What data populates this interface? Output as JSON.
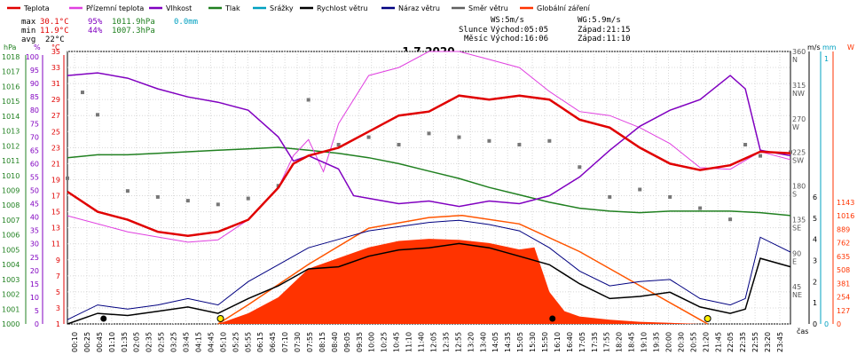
{
  "chart_data": {
    "type": "line",
    "title": "1.7.2020",
    "legend": [
      {
        "name": "Teplota",
        "color": "#e00000"
      },
      {
        "name": "Přízemní teplota",
        "color": "#e040e0"
      },
      {
        "name": "Vlhkost",
        "color": "#8000c0"
      },
      {
        "name": "Tlak",
        "color": "#208020"
      },
      {
        "name": "Srážky",
        "color": "#00a0c0"
      },
      {
        "name": "Rychlost větru",
        "color": "#000000"
      },
      {
        "name": "Náraz větru",
        "color": "#000080"
      },
      {
        "name": "Směr větru",
        "color": "#606060"
      },
      {
        "name": "Globální záření",
        "color": "#ff3300"
      }
    ],
    "stats": {
      "max_label": "max",
      "max_temp": "30.1°C",
      "max_hum": "95%",
      "max_press": "1011.9hPa",
      "max_rain": "0.0mm",
      "min_label": "min",
      "min_temp": "11.9°C",
      "min_hum": "44%",
      "min_press": "1007.3hPa",
      "avg_label": "avg",
      "avg_temp": "22°C"
    },
    "sun": {
      "ws": "WS:5m/s",
      "wg": "WG:5.9m/s",
      "sun_label": "Slunce",
      "sun_rise": "Východ:05:05",
      "sun_set": "Západ:21:15",
      "moon_label": "Měsíc",
      "moon_rise": "Východ:16:06",
      "moon_set": "Západ:11:10"
    },
    "axes": {
      "hpa": {
        "label": "hPa",
        "min": 1000,
        "max": 1018,
        "ticks": [
          "1000",
          "1001",
          "1002",
          "1003",
          "1004",
          "1005",
          "1006",
          "1007",
          "1008",
          "1009",
          "1010",
          "1011",
          "1012",
          "1013",
          "1014",
          "1015",
          "1016",
          "1017",
          "1018"
        ]
      },
      "percent": {
        "label": "%",
        "min": 0,
        "max": 100,
        "ticks": [
          "0",
          "5",
          "10",
          "15",
          "20",
          "25",
          "30",
          "35",
          "40",
          "45",
          "50",
          "55",
          "60",
          "65",
          "70",
          "75",
          "80",
          "85",
          "90",
          "95",
          "100"
        ]
      },
      "celsius": {
        "label": "°C",
        "min": 1,
        "max": 35,
        "ticks": [
          "1",
          "3",
          "5",
          "7",
          "9",
          "11",
          "13",
          "15",
          "17",
          "19",
          "21",
          "23",
          "25",
          "27",
          "29",
          "31",
          "33",
          "35"
        ]
      },
      "wind_dir": {
        "ticks": [
          {
            "v": "45",
            "d": "NE"
          },
          {
            "v": "90",
            "d": "E"
          },
          {
            "v": "135",
            "d": "SE"
          },
          {
            "v": "180",
            "d": "S"
          },
          {
            "v": "225",
            "d": "SW"
          },
          {
            "v": "270",
            "d": "W"
          },
          {
            "v": "315",
            "d": "NW"
          },
          {
            "v": "360",
            "d": "N"
          }
        ]
      },
      "ms": {
        "label": "m/s",
        "ticks": [
          "0",
          "1",
          "2",
          "3",
          "4",
          "5",
          "6"
        ]
      },
      "mm": {
        "label": "mm",
        "ticks": [
          "0",
          "1"
        ]
      },
      "watt": {
        "label": "W",
        "ticks": [
          "0",
          "127",
          "254",
          "381",
          "508",
          "635",
          "762",
          "889",
          "1016",
          "1143"
        ]
      },
      "time": {
        "label": "čas",
        "ticks": [
          "00:10",
          "00:25",
          "00:45",
          "01:10",
          "01:35",
          "02:05",
          "02:35",
          "02:55",
          "03:25",
          "03:45",
          "04:15",
          "04:45",
          "05:10",
          "05:25",
          "05:55",
          "06:15",
          "06:45",
          "07:10",
          "07:30",
          "07:55",
          "08:15",
          "08:40",
          "09:05",
          "09:35",
          "10:00",
          "10:25",
          "10:45",
          "11:10",
          "11:40",
          "12:05",
          "12:35",
          "12:55",
          "13:20",
          "13:40",
          "14:05",
          "14:35",
          "15:05",
          "15:30",
          "15:50",
          "16:10",
          "16:40",
          "17:05",
          "17:35",
          "17:55",
          "18:20",
          "18:45",
          "19:10",
          "19:35",
          "20:00",
          "20:30",
          "20:55",
          "21:20",
          "21:45",
          "22:05",
          "22:35",
          "22:55",
          "23:20",
          "23:45"
        ]
      }
    },
    "series": {
      "temperature": [
        [
          0,
          17.5
        ],
        [
          1,
          15
        ],
        [
          2,
          14
        ],
        [
          3,
          12.5
        ],
        [
          4,
          12
        ],
        [
          5,
          12.5
        ],
        [
          6,
          14
        ],
        [
          7,
          18
        ],
        [
          7.5,
          21
        ],
        [
          8,
          22
        ],
        [
          9,
          23
        ],
        [
          10,
          25
        ],
        [
          11,
          27
        ],
        [
          12,
          27.5
        ],
        [
          13,
          29.5
        ],
        [
          14,
          29
        ],
        [
          15,
          29.5
        ],
        [
          16,
          29
        ],
        [
          17,
          26.5
        ],
        [
          18,
          25.5
        ],
        [
          19,
          23
        ],
        [
          20,
          21
        ],
        [
          21,
          20.2
        ],
        [
          22,
          20.8
        ],
        [
          23,
          22.5
        ],
        [
          24,
          22.3
        ]
      ],
      "ground_temperature": [
        [
          0,
          14.5
        ],
        [
          2,
          12.5
        ],
        [
          4,
          11.2
        ],
        [
          5,
          11.5
        ],
        [
          6,
          14
        ],
        [
          7,
          18
        ],
        [
          7.5,
          22
        ],
        [
          8,
          24
        ],
        [
          8.5,
          20
        ],
        [
          9,
          26
        ],
        [
          10,
          32
        ],
        [
          11,
          33
        ],
        [
          12,
          35
        ],
        [
          13,
          35
        ],
        [
          14,
          34
        ],
        [
          15,
          33
        ],
        [
          16,
          30
        ],
        [
          17,
          27.5
        ],
        [
          18,
          27
        ],
        [
          19,
          25.5
        ],
        [
          20,
          23.5
        ],
        [
          21,
          20.5
        ],
        [
          22,
          20.3
        ],
        [
          23,
          22.5
        ],
        [
          24,
          21.5
        ]
      ],
      "humidity": [
        [
          0,
          93
        ],
        [
          1,
          94
        ],
        [
          2,
          92
        ],
        [
          3,
          88
        ],
        [
          4,
          85
        ],
        [
          5,
          83
        ],
        [
          6,
          80
        ],
        [
          7,
          70
        ],
        [
          7.5,
          61
        ],
        [
          8,
          63
        ],
        [
          9,
          58
        ],
        [
          9.5,
          48
        ],
        [
          10,
          47
        ],
        [
          11,
          45
        ],
        [
          12,
          46
        ],
        [
          13,
          44
        ],
        [
          14,
          46
        ],
        [
          15,
          45
        ],
        [
          16,
          48
        ],
        [
          17,
          55
        ],
        [
          18,
          65
        ],
        [
          19,
          74
        ],
        [
          20,
          80
        ],
        [
          21,
          84
        ],
        [
          22,
          93
        ],
        [
          22.5,
          88
        ],
        [
          23,
          65
        ],
        [
          24,
          63
        ]
      ],
      "pressure": [
        [
          0,
          1011.2
        ],
        [
          1,
          1011.4
        ],
        [
          2,
          1011.4
        ],
        [
          3,
          1011.5
        ],
        [
          4,
          1011.6
        ],
        [
          5,
          1011.7
        ],
        [
          6,
          1011.8
        ],
        [
          7,
          1011.9
        ],
        [
          8,
          1011.7
        ],
        [
          9,
          1011.5
        ],
        [
          10,
          1011.2
        ],
        [
          11,
          1010.8
        ],
        [
          12,
          1010.3
        ],
        [
          13,
          1009.8
        ],
        [
          14,
          1009.2
        ],
        [
          15,
          1008.7
        ],
        [
          16,
          1008.2
        ],
        [
          17,
          1007.8
        ],
        [
          18,
          1007.6
        ],
        [
          19,
          1007.5
        ],
        [
          20,
          1007.6
        ],
        [
          21,
          1007.6
        ],
        [
          22,
          1007.6
        ],
        [
          23,
          1007.5
        ],
        [
          24,
          1007.3
        ]
      ],
      "wind_speed": [
        [
          0,
          0
        ],
        [
          1,
          0.5
        ],
        [
          2,
          0.4
        ],
        [
          3,
          0.6
        ],
        [
          4,
          0.8
        ],
        [
          5,
          0.5
        ],
        [
          6,
          1.2
        ],
        [
          7,
          1.8
        ],
        [
          8,
          2.6
        ],
        [
          9,
          2.7
        ],
        [
          10,
          3.2
        ],
        [
          11,
          3.5
        ],
        [
          12,
          3.6
        ],
        [
          13,
          3.8
        ],
        [
          14,
          3.6
        ],
        [
          15,
          3.2
        ],
        [
          16,
          2.8
        ],
        [
          17,
          1.9
        ],
        [
          18,
          1.2
        ],
        [
          19,
          1.3
        ],
        [
          20,
          1.5
        ],
        [
          21,
          0.8
        ],
        [
          22,
          0.5
        ],
        [
          22.5,
          0.7
        ],
        [
          23,
          3.1
        ],
        [
          24,
          2.7
        ]
      ],
      "wind_gust": [
        [
          0,
          0.2
        ],
        [
          1,
          0.9
        ],
        [
          2,
          0.7
        ],
        [
          3,
          0.9
        ],
        [
          4,
          1.2
        ],
        [
          5,
          0.9
        ],
        [
          6,
          2.0
        ],
        [
          7,
          2.8
        ],
        [
          8,
          3.6
        ],
        [
          9,
          4.0
        ],
        [
          10,
          4.4
        ],
        [
          11,
          4.6
        ],
        [
          12,
          4.8
        ],
        [
          13,
          4.9
        ],
        [
          14,
          4.7
        ],
        [
          15,
          4.4
        ],
        [
          16,
          3.6
        ],
        [
          17,
          2.5
        ],
        [
          18,
          1.8
        ],
        [
          19,
          2.0
        ],
        [
          20,
          2.1
        ],
        [
          21,
          1.2
        ],
        [
          22,
          0.9
        ],
        [
          22.5,
          1.2
        ],
        [
          23,
          4.1
        ],
        [
          24,
          3.4
        ]
      ],
      "wind_direction": [
        [
          0,
          195
        ],
        [
          0.5,
          310
        ],
        [
          1,
          280
        ],
        [
          2,
          178
        ],
        [
          3,
          170
        ],
        [
          4,
          165
        ],
        [
          5,
          160
        ],
        [
          6,
          168
        ],
        [
          7,
          185
        ],
        [
          8,
          300
        ],
        [
          9,
          240
        ],
        [
          10,
          250
        ],
        [
          11,
          240
        ],
        [
          12,
          255
        ],
        [
          13,
          250
        ],
        [
          14,
          245
        ],
        [
          15,
          240
        ],
        [
          16,
          245
        ],
        [
          17,
          210
        ],
        [
          18,
          170
        ],
        [
          19,
          180
        ],
        [
          20,
          170
        ],
        [
          21,
          155
        ],
        [
          22,
          140
        ],
        [
          22.5,
          240
        ],
        [
          23,
          225
        ],
        [
          24,
          230
        ]
      ],
      "global_radiation": [
        [
          0,
          0
        ],
        [
          5,
          0
        ],
        [
          6,
          100
        ],
        [
          7,
          250
        ],
        [
          8,
          520
        ],
        [
          9,
          620
        ],
        [
          10,
          720
        ],
        [
          11,
          780
        ],
        [
          12,
          800
        ],
        [
          13,
          790
        ],
        [
          14,
          760
        ],
        [
          15,
          700
        ],
        [
          15.5,
          720
        ],
        [
          16,
          300
        ],
        [
          16.5,
          120
        ],
        [
          17,
          70
        ],
        [
          18,
          40
        ],
        [
          19,
          20
        ],
        [
          20,
          10
        ],
        [
          21,
          0
        ],
        [
          24,
          0
        ]
      ],
      "global_radiation_theoretical": [
        [
          5,
          0
        ],
        [
          6,
          180
        ],
        [
          8,
          560
        ],
        [
          10,
          900
        ],
        [
          12,
          1000
        ],
        [
          13.1,
          1020
        ],
        [
          15,
          940
        ],
        [
          17,
          680
        ],
        [
          19,
          360
        ],
        [
          21,
          40
        ],
        [
          21.25,
          0
        ]
      ]
    }
  }
}
